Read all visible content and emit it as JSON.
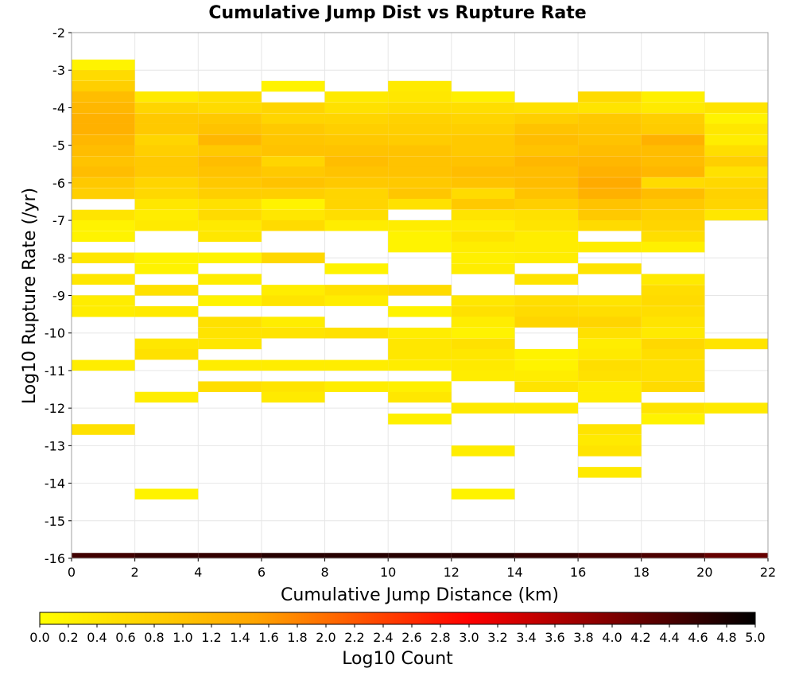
{
  "chart_data": {
    "type": "heatmap",
    "title": "Cumulative Jump Dist vs Rupture Rate",
    "xlabel": "Cumulative Jump Distance (km)",
    "ylabel": "Log10 Rupture Rate (/yr)",
    "xlim": [
      0,
      22
    ],
    "ylim": [
      -16,
      -2
    ],
    "x_ticks": [
      "0",
      "2",
      "4",
      "6",
      "8",
      "10",
      "12",
      "14",
      "16",
      "18",
      "20",
      "22"
    ],
    "y_ticks": [
      "-2",
      "-3",
      "-4",
      "-5",
      "-6",
      "-7",
      "-8",
      "-9",
      "-10",
      "-11",
      "-12",
      "-13",
      "-14",
      "-15",
      "-16"
    ],
    "x_bin_width": 2,
    "y_bin_width": 0.2857,
    "grid": true,
    "colorbar": {
      "label": "Log10 Count",
      "min": 0,
      "max": 5,
      "ticks": [
        "0.0",
        "0.2",
        "0.4",
        "0.6",
        "0.8",
        "1.0",
        "1.2",
        "1.4",
        "1.6",
        "1.8",
        "2.0",
        "2.2",
        "2.4",
        "2.6",
        "2.8",
        "3.0",
        "3.2",
        "3.4",
        "3.6",
        "3.8",
        "4.0",
        "4.2",
        "4.4",
        "4.6",
        "4.8",
        "5.0"
      ],
      "colors": [
        "#ffff00",
        "#ffa500",
        "#ff0000",
        "#000000"
      ]
    },
    "columns": [
      {
        "x_start": 0,
        "cells": [
          {
            "y": -2.86,
            "v": 0.2
          },
          {
            "y": -3.14,
            "v": 0.6
          },
          {
            "y": -3.43,
            "v": 0.8
          },
          {
            "y": -3.71,
            "v": 1.1
          },
          {
            "y": -4.0,
            "v": 1.2
          },
          {
            "y": -4.29,
            "v": 1.3
          },
          {
            "y": -4.57,
            "v": 1.3
          },
          {
            "y": -4.86,
            "v": 1.2
          },
          {
            "y": -5.14,
            "v": 1.1
          },
          {
            "y": -5.43,
            "v": 1.0
          },
          {
            "y": -5.71,
            "v": 1.1
          },
          {
            "y": -6.0,
            "v": 0.9
          },
          {
            "y": -6.29,
            "v": 0.8
          },
          {
            "y": -6.86,
            "v": 0.45
          },
          {
            "y": -7.14,
            "v": 0.2
          },
          {
            "y": -7.43,
            "v": 0.2
          },
          {
            "y": -8.0,
            "v": 0.4
          },
          {
            "y": -8.57,
            "v": 0.4
          },
          {
            "y": -9.14,
            "v": 0.3
          },
          {
            "y": -9.43,
            "v": 0.3
          },
          {
            "y": -10.86,
            "v": 0.3
          },
          {
            "y": -12.57,
            "v": 0.5
          }
        ]
      },
      {
        "x_start": 2,
        "cells": [
          {
            "y": -3.71,
            "v": 0.35
          },
          {
            "y": -4.0,
            "v": 0.7
          },
          {
            "y": -4.29,
            "v": 0.9
          },
          {
            "y": -4.57,
            "v": 0.9
          },
          {
            "y": -4.86,
            "v": 0.7
          },
          {
            "y": -5.14,
            "v": 0.8
          },
          {
            "y": -5.43,
            "v": 0.9
          },
          {
            "y": -5.71,
            "v": 0.9
          },
          {
            "y": -6.0,
            "v": 0.7
          },
          {
            "y": -6.29,
            "v": 0.65
          },
          {
            "y": -6.57,
            "v": 0.4
          },
          {
            "y": -6.86,
            "v": 0.3
          },
          {
            "y": -7.14,
            "v": 0.35
          },
          {
            "y": -8.0,
            "v": 0.2
          },
          {
            "y": -8.29,
            "v": 0.2
          },
          {
            "y": -8.86,
            "v": 0.5
          },
          {
            "y": -9.43,
            "v": 0.35
          },
          {
            "y": -10.29,
            "v": 0.4
          },
          {
            "y": -10.57,
            "v": 0.5
          },
          {
            "y": -11.71,
            "v": 0.3
          },
          {
            "y": -14.29,
            "v": 0.2
          }
        ]
      },
      {
        "x_start": 4,
        "cells": [
          {
            "y": -3.71,
            "v": 0.5
          },
          {
            "y": -4.0,
            "v": 0.6
          },
          {
            "y": -4.29,
            "v": 0.9
          },
          {
            "y": -4.57,
            "v": 1.0
          },
          {
            "y": -4.86,
            "v": 1.2
          },
          {
            "y": -5.14,
            "v": 0.9
          },
          {
            "y": -5.43,
            "v": 1.1
          },
          {
            "y": -5.71,
            "v": 1.0
          },
          {
            "y": -6.0,
            "v": 0.9
          },
          {
            "y": -6.29,
            "v": 0.8
          },
          {
            "y": -6.57,
            "v": 0.5
          },
          {
            "y": -6.86,
            "v": 0.6
          },
          {
            "y": -7.14,
            "v": 0.35
          },
          {
            "y": -7.43,
            "v": 0.4
          },
          {
            "y": -8.0,
            "v": 0.2
          },
          {
            "y": -8.57,
            "v": 0.3
          },
          {
            "y": -9.14,
            "v": 0.2
          },
          {
            "y": -9.71,
            "v": 0.5
          },
          {
            "y": -10.0,
            "v": 0.45
          },
          {
            "y": -10.29,
            "v": 0.4
          },
          {
            "y": -10.86,
            "v": 0.3
          },
          {
            "y": -11.43,
            "v": 0.55
          }
        ]
      },
      {
        "x_start": 6,
        "cells": [
          {
            "y": -3.43,
            "v": 0.2
          },
          {
            "y": -4.0,
            "v": 0.7
          },
          {
            "y": -4.29,
            "v": 0.7
          },
          {
            "y": -4.57,
            "v": 0.9
          },
          {
            "y": -4.86,
            "v": 0.95
          },
          {
            "y": -5.14,
            "v": 1.0
          },
          {
            "y": -5.43,
            "v": 0.7
          },
          {
            "y": -5.71,
            "v": 0.9
          },
          {
            "y": -6.0,
            "v": 1.0
          },
          {
            "y": -6.29,
            "v": 0.8
          },
          {
            "y": -6.57,
            "v": 0.2
          },
          {
            "y": -6.86,
            "v": 0.4
          },
          {
            "y": -7.14,
            "v": 0.6
          },
          {
            "y": -8.0,
            "v": 0.65
          },
          {
            "y": -8.86,
            "v": 0.3
          },
          {
            "y": -9.14,
            "v": 0.45
          },
          {
            "y": -9.71,
            "v": 0.3
          },
          {
            "y": -10.0,
            "v": 0.45
          },
          {
            "y": -10.86,
            "v": 0.3
          },
          {
            "y": -11.43,
            "v": 0.45
          },
          {
            "y": -11.71,
            "v": 0.35
          }
        ]
      },
      {
        "x_start": 8,
        "cells": [
          {
            "y": -3.71,
            "v": 0.35
          },
          {
            "y": -4.0,
            "v": 0.5
          },
          {
            "y": -4.29,
            "v": 0.7
          },
          {
            "y": -4.57,
            "v": 0.8
          },
          {
            "y": -4.86,
            "v": 0.9
          },
          {
            "y": -5.14,
            "v": 1.0
          },
          {
            "y": -5.43,
            "v": 1.1
          },
          {
            "y": -5.71,
            "v": 1.0
          },
          {
            "y": -6.0,
            "v": 0.9
          },
          {
            "y": -6.29,
            "v": 0.7
          },
          {
            "y": -6.57,
            "v": 0.7
          },
          {
            "y": -6.86,
            "v": 0.55
          },
          {
            "y": -7.14,
            "v": 0.3
          },
          {
            "y": -8.29,
            "v": 0.2
          },
          {
            "y": -8.86,
            "v": 0.5
          },
          {
            "y": -9.14,
            "v": 0.3
          },
          {
            "y": -10.0,
            "v": 0.5
          },
          {
            "y": -10.86,
            "v": 0.3
          },
          {
            "y": -11.43,
            "v": 0.3
          }
        ]
      },
      {
        "x_start": 10,
        "cells": [
          {
            "y": -3.43,
            "v": 0.35
          },
          {
            "y": -3.71,
            "v": 0.4
          },
          {
            "y": -4.0,
            "v": 0.55
          },
          {
            "y": -4.29,
            "v": 0.75
          },
          {
            "y": -4.57,
            "v": 0.8
          },
          {
            "y": -4.86,
            "v": 0.85
          },
          {
            "y": -5.14,
            "v": 1.0
          },
          {
            "y": -5.43,
            "v": 1.0
          },
          {
            "y": -5.71,
            "v": 1.0
          },
          {
            "y": -6.0,
            "v": 0.9
          },
          {
            "y": -6.29,
            "v": 0.95
          },
          {
            "y": -6.57,
            "v": 0.5
          },
          {
            "y": -7.14,
            "v": 0.3
          },
          {
            "y": -7.43,
            "v": 0.2
          },
          {
            "y": -7.71,
            "v": 0.2
          },
          {
            "y": -8.86,
            "v": 0.6
          },
          {
            "y": -9.43,
            "v": 0.2
          },
          {
            "y": -10.0,
            "v": 0.3
          },
          {
            "y": -10.29,
            "v": 0.4
          },
          {
            "y": -10.57,
            "v": 0.4
          },
          {
            "y": -10.86,
            "v": 0.3
          },
          {
            "y": -11.43,
            "v": 0.25
          },
          {
            "y": -11.71,
            "v": 0.4
          },
          {
            "y": -12.29,
            "v": 0.25
          }
        ]
      },
      {
        "x_start": 12,
        "cells": [
          {
            "y": -3.71,
            "v": 0.25
          },
          {
            "y": -4.0,
            "v": 0.55
          },
          {
            "y": -4.29,
            "v": 0.7
          },
          {
            "y": -4.57,
            "v": 0.8
          },
          {
            "y": -4.86,
            "v": 0.9
          },
          {
            "y": -5.14,
            "v": 0.9
          },
          {
            "y": -5.43,
            "v": 1.0
          },
          {
            "y": -5.71,
            "v": 1.1
          },
          {
            "y": -6.0,
            "v": 1.0
          },
          {
            "y": -6.29,
            "v": 0.6
          },
          {
            "y": -6.57,
            "v": 0.9
          },
          {
            "y": -6.86,
            "v": 0.45
          },
          {
            "y": -7.14,
            "v": 0.3
          },
          {
            "y": -7.43,
            "v": 0.45
          },
          {
            "y": -7.71,
            "v": 0.3
          },
          {
            "y": -8.0,
            "v": 0.25
          },
          {
            "y": -8.29,
            "v": 0.3
          },
          {
            "y": -9.14,
            "v": 0.4
          },
          {
            "y": -9.43,
            "v": 0.5
          },
          {
            "y": -9.71,
            "v": 0.3
          },
          {
            "y": -10.0,
            "v": 0.2
          },
          {
            "y": -10.29,
            "v": 0.5
          },
          {
            "y": -10.57,
            "v": 0.4
          },
          {
            "y": -10.86,
            "v": 0.35
          },
          {
            "y": -11.14,
            "v": 0.3
          },
          {
            "y": -12.0,
            "v": 0.35
          },
          {
            "y": -13.14,
            "v": 0.3
          },
          {
            "y": -14.29,
            "v": 0.2
          }
        ]
      },
      {
        "x_start": 14,
        "cells": [
          {
            "y": -4.0,
            "v": 0.5
          },
          {
            "y": -4.29,
            "v": 0.8
          },
          {
            "y": -4.57,
            "v": 1.0
          },
          {
            "y": -4.86,
            "v": 1.1
          },
          {
            "y": -5.14,
            "v": 1.0
          },
          {
            "y": -5.43,
            "v": 1.2
          },
          {
            "y": -5.71,
            "v": 1.1
          },
          {
            "y": -6.0,
            "v": 1.1
          },
          {
            "y": -6.29,
            "v": 1.0
          },
          {
            "y": -6.57,
            "v": 0.8
          },
          {
            "y": -6.86,
            "v": 0.5
          },
          {
            "y": -7.14,
            "v": 0.45
          },
          {
            "y": -7.43,
            "v": 0.3
          },
          {
            "y": -7.71,
            "v": 0.3
          },
          {
            "y": -8.0,
            "v": 0.3
          },
          {
            "y": -8.57,
            "v": 0.45
          },
          {
            "y": -9.14,
            "v": 0.55
          },
          {
            "y": -9.43,
            "v": 0.6
          },
          {
            "y": -9.71,
            "v": 0.7
          },
          {
            "y": -10.57,
            "v": 0.2
          },
          {
            "y": -10.86,
            "v": 0.2
          },
          {
            "y": -11.14,
            "v": 0.3
          },
          {
            "y": -11.43,
            "v": 0.45
          },
          {
            "y": -12.0,
            "v": 0.35
          }
        ]
      },
      {
        "x_start": 16,
        "cells": [
          {
            "y": -3.71,
            "v": 0.6
          },
          {
            "y": -4.0,
            "v": 0.45
          },
          {
            "y": -4.29,
            "v": 0.9
          },
          {
            "y": -4.57,
            "v": 0.95
          },
          {
            "y": -4.86,
            "v": 1.0
          },
          {
            "y": -5.14,
            "v": 1.1
          },
          {
            "y": -5.43,
            "v": 1.2
          },
          {
            "y": -5.71,
            "v": 1.3
          },
          {
            "y": -6.0,
            "v": 1.4
          },
          {
            "y": -6.29,
            "v": 1.3
          },
          {
            "y": -6.57,
            "v": 1.0
          },
          {
            "y": -6.86,
            "v": 0.9
          },
          {
            "y": -7.14,
            "v": 0.6
          },
          {
            "y": -7.71,
            "v": 0.3
          },
          {
            "y": -8.29,
            "v": 0.45
          },
          {
            "y": -9.14,
            "v": 0.45
          },
          {
            "y": -9.43,
            "v": 0.55
          },
          {
            "y": -9.71,
            "v": 0.7
          },
          {
            "y": -10.0,
            "v": 0.5
          },
          {
            "y": -10.29,
            "v": 0.3
          },
          {
            "y": -10.57,
            "v": 0.35
          },
          {
            "y": -10.86,
            "v": 0.55
          },
          {
            "y": -11.14,
            "v": 0.5
          },
          {
            "y": -11.43,
            "v": 0.3
          },
          {
            "y": -11.71,
            "v": 0.3
          },
          {
            "y": -12.57,
            "v": 0.45
          },
          {
            "y": -12.86,
            "v": 0.35
          },
          {
            "y": -13.14,
            "v": 0.45
          },
          {
            "y": -13.71,
            "v": 0.35
          }
        ]
      },
      {
        "x_start": 18,
        "cells": [
          {
            "y": -3.71,
            "v": 0.25
          },
          {
            "y": -4.0,
            "v": 0.35
          },
          {
            "y": -4.29,
            "v": 0.8
          },
          {
            "y": -4.57,
            "v": 0.85
          },
          {
            "y": -4.86,
            "v": 1.3
          },
          {
            "y": -5.14,
            "v": 1.1
          },
          {
            "y": -5.43,
            "v": 1.1
          },
          {
            "y": -5.71,
            "v": 1.2
          },
          {
            "y": -6.0,
            "v": 0.6
          },
          {
            "y": -6.29,
            "v": 1.1
          },
          {
            "y": -6.57,
            "v": 0.9
          },
          {
            "y": -6.86,
            "v": 0.75
          },
          {
            "y": -7.14,
            "v": 0.7
          },
          {
            "y": -7.43,
            "v": 0.55
          },
          {
            "y": -7.71,
            "v": 0.25
          },
          {
            "y": -8.57,
            "v": 0.35
          },
          {
            "y": -8.86,
            "v": 0.55
          },
          {
            "y": -9.14,
            "v": 0.6
          },
          {
            "y": -9.43,
            "v": 0.55
          },
          {
            "y": -9.71,
            "v": 0.45
          },
          {
            "y": -10.0,
            "v": 0.35
          },
          {
            "y": -10.29,
            "v": 0.65
          },
          {
            "y": -10.57,
            "v": 0.55
          },
          {
            "y": -10.86,
            "v": 0.5
          },
          {
            "y": -11.14,
            "v": 0.5
          },
          {
            "y": -11.43,
            "v": 0.6
          },
          {
            "y": -12.0,
            "v": 0.45
          },
          {
            "y": -12.29,
            "v": 0.2
          }
        ]
      },
      {
        "x_start": 20,
        "cells": [
          {
            "y": -4.0,
            "v": 0.45
          },
          {
            "y": -4.29,
            "v": 0.2
          },
          {
            "y": -4.57,
            "v": 0.4
          },
          {
            "y": -4.86,
            "v": 0.3
          },
          {
            "y": -5.14,
            "v": 0.55
          },
          {
            "y": -5.43,
            "v": 0.8
          },
          {
            "y": -5.71,
            "v": 0.5
          },
          {
            "y": -6.0,
            "v": 0.65
          },
          {
            "y": -6.29,
            "v": 0.75
          },
          {
            "y": -6.57,
            "v": 0.7
          },
          {
            "y": -6.86,
            "v": 0.4
          },
          {
            "y": -10.29,
            "v": 0.45
          },
          {
            "y": -12.0,
            "v": 0.35
          }
        ]
      }
    ],
    "bottom_row": {
      "y": -16.0,
      "values": [
        4.5,
        4.6,
        4.6,
        4.7,
        4.7,
        4.7,
        4.7,
        4.6,
        4.5,
        4.4,
        4.2
      ]
    }
  }
}
